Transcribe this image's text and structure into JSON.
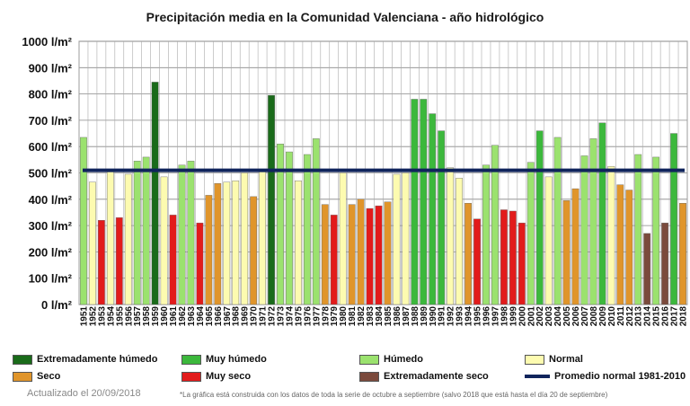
{
  "chart_data": {
    "type": "bar",
    "title": "Precipitación media en la Comunidad Valenciana - año hidrológico",
    "ylim": [
      0,
      1000
    ],
    "yticks": [
      "0 l/m²",
      "100 l/m²",
      "200 l/m²",
      "300 l/m²",
      "400 l/m²",
      "500 l/m²",
      "600 l/m²",
      "700 l/m²",
      "800 l/m²",
      "900 l/m²",
      "1000 l/m²"
    ],
    "categories": [
      "1951",
      "1952",
      "1953",
      "1954",
      "1955",
      "1956",
      "1957",
      "1958",
      "1959",
      "1960",
      "1961",
      "1962",
      "1963",
      "1964",
      "1965",
      "1966",
      "1967",
      "1968",
      "1969",
      "1970",
      "1971",
      "1972",
      "1973",
      "1974",
      "1975",
      "1976",
      "1977",
      "1978",
      "1979",
      "1980",
      "1981",
      "1982",
      "1983",
      "1984",
      "1985",
      "1986",
      "1987",
      "1988",
      "1989",
      "1990",
      "1991",
      "1992",
      "1993",
      "1994",
      "1995",
      "1996",
      "1997",
      "1998",
      "1999",
      "2000",
      "2001",
      "2002",
      "2003",
      "2004",
      "2005",
      "2006",
      "2007",
      "2008",
      "2009",
      "2010",
      "2011",
      "2012",
      "2013",
      "2014",
      "2015",
      "2016",
      "2017",
      "2018"
    ],
    "values": [
      635,
      465,
      320,
      505,
      330,
      495,
      545,
      560,
      845,
      485,
      340,
      530,
      545,
      310,
      415,
      460,
      465,
      470,
      500,
      410,
      510,
      795,
      610,
      580,
      470,
      570,
      630,
      380,
      340,
      500,
      380,
      400,
      365,
      375,
      390,
      495,
      500,
      780,
      780,
      725,
      660,
      520,
      480,
      385,
      325,
      530,
      605,
      360,
      355,
      310,
      540,
      660,
      485,
      635,
      395,
      440,
      565,
      630,
      690,
      525,
      455,
      435,
      570,
      270,
      560,
      310,
      650,
      385
    ],
    "classes": [
      "humedo",
      "normal",
      "muy_seco",
      "normal",
      "muy_seco",
      "normal",
      "humedo",
      "humedo",
      "extremadamente_humedo",
      "normal",
      "muy_seco",
      "humedo",
      "humedo",
      "muy_seco",
      "seco",
      "seco",
      "normal",
      "normal",
      "normal",
      "seco",
      "normal",
      "extremadamente_humedo",
      "humedo",
      "humedo",
      "normal",
      "humedo",
      "humedo",
      "seco",
      "muy_seco",
      "normal",
      "seco",
      "seco",
      "muy_seco",
      "muy_seco",
      "seco",
      "normal",
      "normal",
      "muy_humedo",
      "muy_humedo",
      "muy_humedo",
      "muy_humedo",
      "normal",
      "normal",
      "seco",
      "muy_seco",
      "humedo",
      "humedo",
      "muy_seco",
      "muy_seco",
      "muy_seco",
      "humedo",
      "muy_humedo",
      "normal",
      "humedo",
      "seco",
      "seco",
      "humedo",
      "humedo",
      "muy_humedo",
      "normal",
      "seco",
      "seco",
      "humedo",
      "extremadamente_seco",
      "humedo",
      "extremadamente_seco",
      "muy_humedo",
      "seco"
    ],
    "reference_line": {
      "name": "Promedio normal 1981-2010",
      "value": 510
    },
    "colors": {
      "extremadamente_humedo": "#1a6b1a",
      "muy_humedo": "#3cb83c",
      "humedo": "#9be26e",
      "normal": "#fdfbb0",
      "seco": "#e0952b",
      "muy_seco": "#e21b1b",
      "extremadamente_seco": "#7b4a3c",
      "promedio": "#10245c"
    },
    "legend": [
      {
        "key": "extremadamente_humedo",
        "label": "Extremadamente húmedo"
      },
      {
        "key": "muy_humedo",
        "label": "Muy húmedo"
      },
      {
        "key": "humedo",
        "label": "Húmedo"
      },
      {
        "key": "normal",
        "label": "Normal"
      },
      {
        "key": "seco",
        "label": "Seco"
      },
      {
        "key": "muy_seco",
        "label": "Muy seco"
      },
      {
        "key": "extremadamente_seco",
        "label": "Extremadamente seco"
      },
      {
        "key": "promedio",
        "label": "Promedio normal 1981-2010"
      }
    ],
    "grid": true,
    "legend_position": "bottom"
  },
  "footer": {
    "updated": "Actualizado el 20/09/2018",
    "footnote": "*La gráfica está construida con los datos de toda la serie de octubre a septiembre (salvo 2018 que está hasta el día 20 de septiembre)"
  }
}
